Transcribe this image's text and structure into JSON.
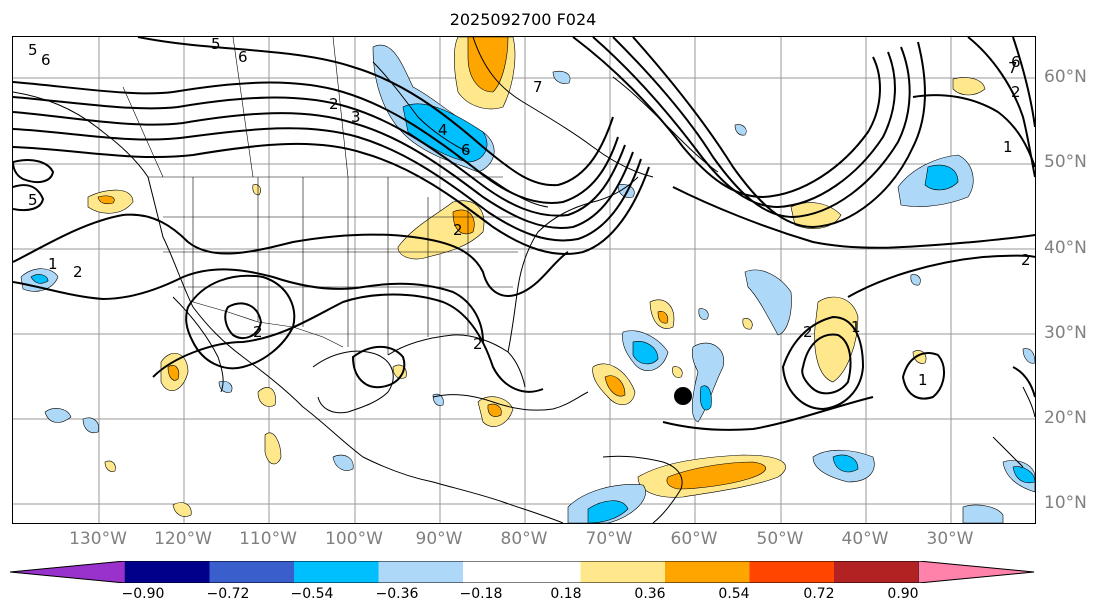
{
  "title": "2025092700 F024",
  "latitude_labels": [
    "60°N",
    "50°N",
    "40°N",
    "30°N",
    "20°N",
    "10°N"
  ],
  "longitude_labels": [
    "130°W",
    "120°W",
    "110°W",
    "100°W",
    "90°W",
    "80°W",
    "70°W",
    "60°W",
    "50°W",
    "40°W",
    "30°W"
  ],
  "contour_labels": [
    "5",
    "6",
    "6",
    "5",
    "2",
    "3",
    "4",
    "6",
    "2",
    "7",
    "1",
    "2",
    "5",
    "1",
    "2",
    "2",
    "2",
    "2",
    "7",
    "1",
    "1",
    "6",
    "2"
  ],
  "colorbar": {
    "tick_labels": [
      "−0.90",
      "−0.72",
      "−0.54",
      "−0.36",
      "−0.18",
      "0.18",
      "0.36",
      "0.54",
      "0.72",
      "0.90"
    ],
    "colors": [
      "#9932cc",
      "#00008b",
      "#3a5fcd",
      "#00bfff",
      "#add8f7",
      "#ffffff",
      "#ffe88c",
      "#ffa500",
      "#ff4500",
      "#b22222",
      "#ff82ab"
    ]
  },
  "marker": {
    "label": "",
    "color": "#000000"
  }
}
